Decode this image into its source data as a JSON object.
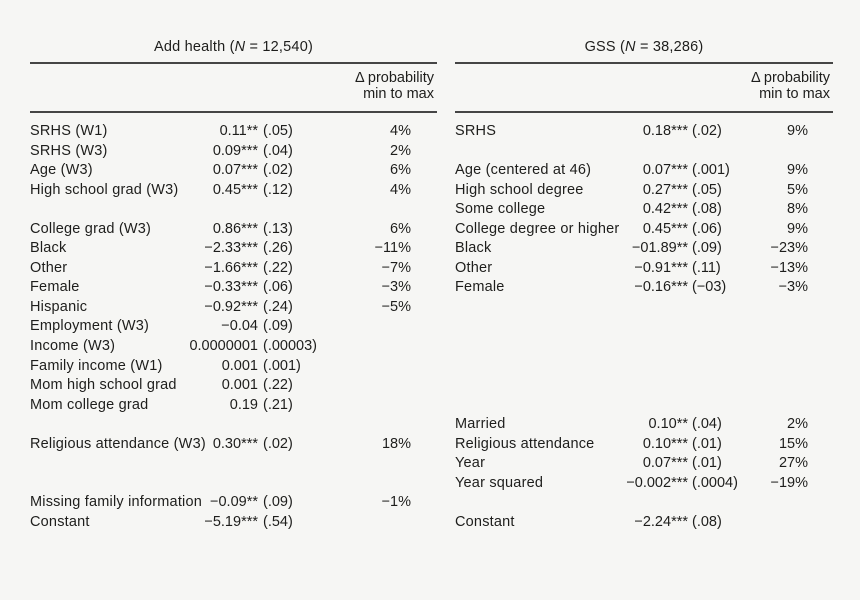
{
  "page": {
    "background": "#f6f6f4",
    "text_color": "#1e1e1c",
    "rule_color": "#454545"
  },
  "panels": [
    {
      "id": "add-health",
      "title": {
        "prefix": "Add health (",
        "n": "N",
        "suffix": " = 12,540)"
      },
      "col_header": {
        "line1": "Δ probability",
        "line2": "min to max"
      },
      "rows": [
        {
          "label": "SRHS (W1)",
          "coef": "0.11**",
          "se": "(.05)",
          "delta": "4%"
        },
        {
          "label": "SRHS (W3)",
          "coef": "0.09***",
          "se": "(.04)",
          "delta": "2%"
        },
        {
          "label": "Age (W3)",
          "coef": "0.07***",
          "se": "(.02)",
          "delta": "6%"
        },
        {
          "label": "High school grad (W3)",
          "coef": "0.45***",
          "se": "(.12)",
          "delta": "4%"
        },
        {
          "label": "",
          "coef": "",
          "se": "",
          "delta": ""
        },
        {
          "label": "College grad (W3)",
          "coef": "0.86***",
          "se": "(.13)",
          "delta": "6%"
        },
        {
          "label": "Black",
          "coef": "−2.33***",
          "se": "(.26)",
          "delta": "−11%"
        },
        {
          "label": "Other",
          "coef": "−1.66***",
          "se": "(.22)",
          "delta": "−7%"
        },
        {
          "label": "Female",
          "coef": "−0.33***",
          "se": "(.06)",
          "delta": "−3%"
        },
        {
          "label": "Hispanic",
          "coef": "−0.92***",
          "se": "(.24)",
          "delta": "−5%"
        },
        {
          "label": "Employment (W3)",
          "coef": "−0.04",
          "se": "(.09)",
          "delta": ""
        },
        {
          "label": "Income (W3)",
          "coef": "0.0000001",
          "se": "(.00003)",
          "delta": ""
        },
        {
          "label": "Family income (W1)",
          "coef": "0.001",
          "se": "(.001)",
          "delta": ""
        },
        {
          "label": "Mom high school grad",
          "coef": "0.001",
          "se": "(.22)",
          "delta": ""
        },
        {
          "label": "Mom college grad",
          "coef": "0.19",
          "se": "(.21)",
          "delta": ""
        },
        {
          "label": "",
          "coef": "",
          "se": "",
          "delta": ""
        },
        {
          "label": "Religious attendance (W3)",
          "coef": "0.30***",
          "se": "(.02)",
          "delta": "18%"
        },
        {
          "label": "",
          "coef": "",
          "se": "",
          "delta": ""
        },
        {
          "label": "",
          "coef": "",
          "se": "",
          "delta": ""
        },
        {
          "label": "Missing family information",
          "coef": "−0.09**",
          "se": "(.09)",
          "delta": "−1%"
        },
        {
          "label": "Constant",
          "coef": "−5.19***",
          "se": "(.54)",
          "delta": ""
        }
      ]
    },
    {
      "id": "gss",
      "title": {
        "prefix": "GSS (",
        "n": "N",
        "suffix": " = 38,286)"
      },
      "col_header": {
        "line1": "Δ probability",
        "line2": "min to max"
      },
      "rows": [
        {
          "label": "SRHS",
          "coef": "0.18***",
          "se": "(.02)",
          "delta": "9%"
        },
        {
          "label": "",
          "coef": "",
          "se": "",
          "delta": ""
        },
        {
          "label": "Age (centered at 46)",
          "coef": "0.07***",
          "se": "(.001)",
          "delta": "9%"
        },
        {
          "label": "High school degree",
          "coef": "0.27***",
          "se": "(.05)",
          "delta": "5%"
        },
        {
          "label": "Some college",
          "coef": "0.42***",
          "se": "(.08)",
          "delta": "8%"
        },
        {
          "label": "College degree or higher",
          "coef": "0.45***",
          "se": "(.06)",
          "delta": "9%"
        },
        {
          "label": "Black",
          "coef": "−01.89**",
          "se": "(.09)",
          "delta": "−23%"
        },
        {
          "label": "Other",
          "coef": "−0.91***",
          "se": "(.11)",
          "delta": "−13%"
        },
        {
          "label": "Female",
          "coef": "−0.16***",
          "se": "(−03)",
          "delta": "−3%"
        },
        {
          "label": "",
          "coef": "",
          "se": "",
          "delta": ""
        },
        {
          "label": "",
          "coef": "",
          "se": "",
          "delta": ""
        },
        {
          "label": "",
          "coef": "",
          "se": "",
          "delta": ""
        },
        {
          "label": "",
          "coef": "",
          "se": "",
          "delta": ""
        },
        {
          "label": "",
          "coef": "",
          "se": "",
          "delta": ""
        },
        {
          "label": "",
          "coef": "",
          "se": "",
          "delta": ""
        },
        {
          "label": "Married",
          "coef": "0.10**",
          "se": "(.04)",
          "delta": "2%"
        },
        {
          "label": "Religious attendance",
          "coef": "0.10***",
          "se": "(.01)",
          "delta": "15%"
        },
        {
          "label": "Year",
          "coef": "0.07***",
          "se": "(.01)",
          "delta": "27%"
        },
        {
          "label": "Year squared",
          "coef": "−0.002***",
          "se": "(.0004)",
          "delta": "−19%"
        },
        {
          "label": "",
          "coef": "",
          "se": "",
          "delta": ""
        },
        {
          "label": "Constant",
          "coef": "−2.24***",
          "se": "(.08)",
          "delta": ""
        }
      ]
    }
  ]
}
